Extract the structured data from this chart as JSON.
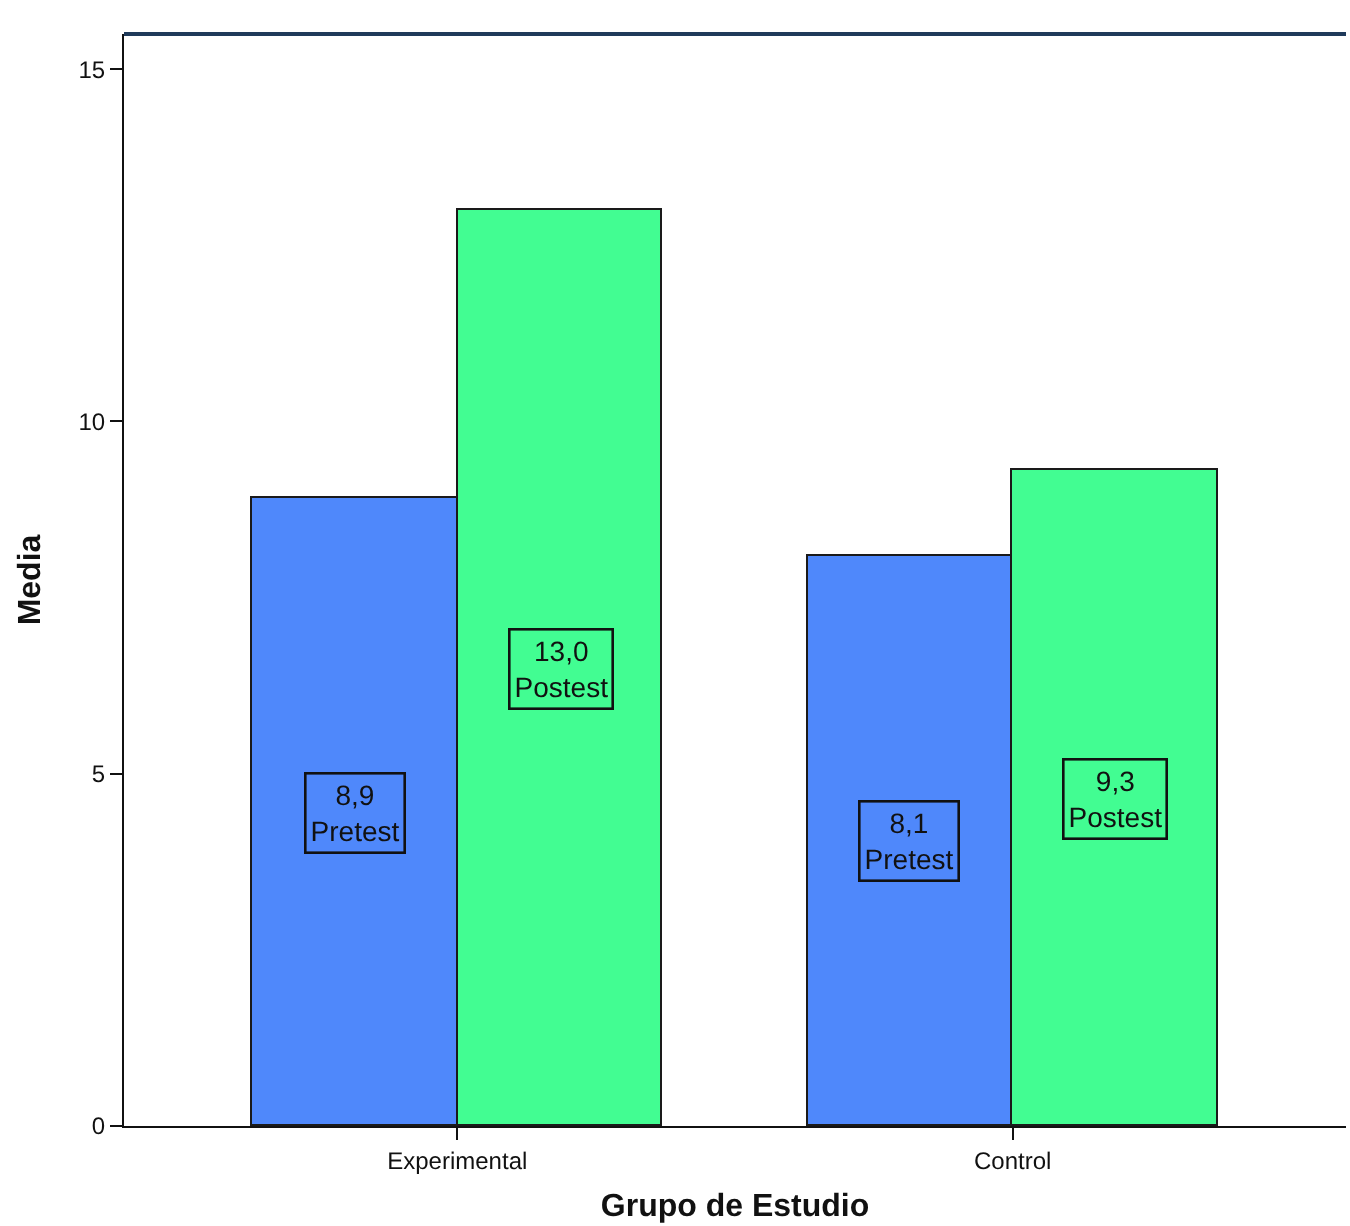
{
  "chart_data": {
    "type": "bar",
    "xlabel": "Grupo de Estudio",
    "ylabel": "Media",
    "categories": [
      "Experimental",
      "Control"
    ],
    "series": [
      {
        "name": "Pretest",
        "color": "#4f88fb",
        "values": [
          8.9,
          8.1
        ],
        "value_labels": [
          "8,9",
          "8,1"
        ]
      },
      {
        "name": "Postest",
        "color": "#42fd92",
        "values": [
          13.0,
          9.3
        ],
        "value_labels": [
          "13,0",
          "9,3"
        ]
      }
    ],
    "ylim": [
      0,
      15.5
    ],
    "yticks": [
      0,
      5,
      10,
      15
    ],
    "grid": false,
    "legend": false
  }
}
